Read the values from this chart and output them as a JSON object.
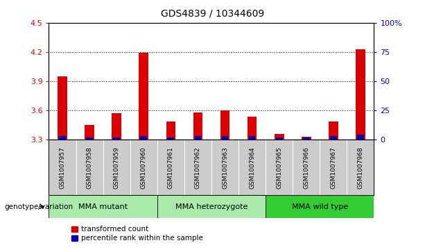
{
  "title": "GDS4839 / 10344609",
  "samples": [
    "GSM1007957",
    "GSM1007958",
    "GSM1007959",
    "GSM1007960",
    "GSM1007961",
    "GSM1007962",
    "GSM1007963",
    "GSM1007964",
    "GSM1007965",
    "GSM1007966",
    "GSM1007967",
    "GSM1007968"
  ],
  "red_values": [
    3.95,
    3.45,
    3.57,
    4.19,
    3.49,
    3.58,
    3.6,
    3.54,
    3.36,
    3.33,
    3.49,
    4.23
  ],
  "blue_pct": [
    3.0,
    2.0,
    2.0,
    3.0,
    2.0,
    3.5,
    3.0,
    3.5,
    2.0,
    2.0,
    3.0,
    4.5
  ],
  "ylim_left": [
    3.3,
    4.5
  ],
  "ylim_right": [
    0,
    100
  ],
  "yticks_left": [
    3.3,
    3.6,
    3.9,
    4.2,
    4.5
  ],
  "ytick_labels_left": [
    "3.3",
    "3.6",
    "3.9",
    "4.2",
    "4.5"
  ],
  "yticks_right": [
    0,
    25,
    50,
    75,
    100
  ],
  "ytick_labels_right": [
    "0",
    "25",
    "50",
    "75",
    "100%"
  ],
  "red_bar_width": 0.35,
  "blue_bar_width": 0.25,
  "red_color": "#DD0000",
  "blue_color": "#0000BB",
  "plot_bg": "#ffffff",
  "label_row_bg": "#cccccc",
  "grid_color": "#000000",
  "group_configs": [
    {
      "start": 0,
      "end": 4,
      "label": "MMA mutant",
      "color": "#aaeaaa"
    },
    {
      "start": 4,
      "end": 8,
      "label": "MMA heterozygote",
      "color": "#aaeaaa"
    },
    {
      "start": 8,
      "end": 12,
      "label": "MMA wild type",
      "color": "#33cc33"
    }
  ],
  "legend_red": "transformed count",
  "legend_blue": "percentile rank within the sample",
  "genotype_label": "genotype/variation"
}
